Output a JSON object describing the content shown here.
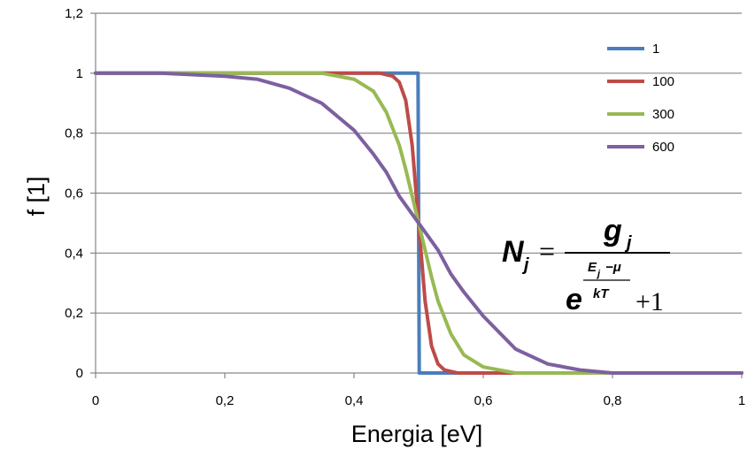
{
  "chart_data": {
    "type": "line",
    "title": "",
    "xlabel": "Energia [eV]",
    "ylabel": "f [1]",
    "xlim": [
      0,
      1
    ],
    "ylim": [
      0,
      1.2
    ],
    "grid": "horizontal",
    "legend_position": "top-right",
    "x_ticks": [
      "0",
      "0,2",
      "0,4",
      "0,6",
      "0,8",
      "1"
    ],
    "y_ticks": [
      "0",
      "0,2",
      "0,4",
      "0,6",
      "0,8",
      "1",
      "1,2"
    ],
    "series": [
      {
        "name": "1",
        "color": "#4a7ebb",
        "x": [
          0.0,
          0.499,
          0.501,
          1.0
        ],
        "y": [
          1.0,
          1.0,
          0.0,
          0.0
        ]
      },
      {
        "name": "100",
        "color": "#be4b48",
        "x": [
          0.0,
          0.4,
          0.44,
          0.46,
          0.47,
          0.48,
          0.49,
          0.5,
          0.51,
          0.52,
          0.53,
          0.54,
          0.56,
          0.6,
          1.0
        ],
        "y": [
          1.0,
          1.0,
          1.0,
          0.99,
          0.97,
          0.91,
          0.76,
          0.5,
          0.24,
          0.09,
          0.03,
          0.01,
          0.0,
          0.0,
          0.0
        ]
      },
      {
        "name": "300",
        "color": "#98b954",
        "x": [
          0.0,
          0.3,
          0.35,
          0.4,
          0.43,
          0.45,
          0.47,
          0.48,
          0.49,
          0.5,
          0.51,
          0.52,
          0.53,
          0.55,
          0.57,
          0.6,
          0.65,
          0.7,
          1.0
        ],
        "y": [
          1.0,
          1.0,
          1.0,
          0.98,
          0.94,
          0.87,
          0.76,
          0.68,
          0.59,
          0.5,
          0.41,
          0.32,
          0.24,
          0.13,
          0.06,
          0.02,
          0.0,
          0.0,
          0.0
        ]
      },
      {
        "name": "600",
        "color": "#7d60a0",
        "x": [
          0.0,
          0.1,
          0.2,
          0.25,
          0.3,
          0.35,
          0.4,
          0.43,
          0.45,
          0.47,
          0.5,
          0.53,
          0.55,
          0.57,
          0.6,
          0.65,
          0.7,
          0.75,
          0.8,
          0.9,
          1.0
        ],
        "y": [
          1.0,
          1.0,
          0.99,
          0.98,
          0.95,
          0.9,
          0.81,
          0.73,
          0.67,
          0.59,
          0.5,
          0.41,
          0.33,
          0.27,
          0.19,
          0.08,
          0.03,
          0.01,
          0.0,
          0.0,
          0.0
        ]
      }
    ]
  },
  "formula": {
    "lhs": "N",
    "lhs_sub": "j",
    "equals": "=",
    "numerator": "g",
    "numerator_sub": "j",
    "base": "e",
    "exp_numerator": "E",
    "exp_numerator_sub": "j",
    "exp_numerator_rest": "−μ",
    "exp_denominator": "kT",
    "plus_one": "+1"
  }
}
